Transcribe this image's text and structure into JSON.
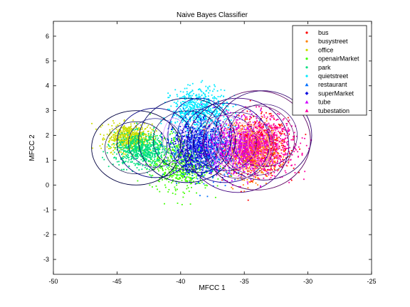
{
  "chart_data": {
    "type": "scatter",
    "title": "Naive Bayes Classifier",
    "xlabel": "MFCC 1",
    "ylabel": "MFCC 2",
    "xlim": [
      -50,
      -25
    ],
    "ylim": [
      -3.6,
      6.6
    ],
    "x_ticks": [
      -50,
      -45,
      -40,
      -35,
      -30,
      -25
    ],
    "y_ticks": [
      -3,
      -2,
      -1,
      0,
      1,
      2,
      3,
      4,
      5,
      6
    ],
    "grid": false,
    "legend_position": "top-right",
    "series": [
      {
        "name": "bus",
        "color": "#ff0000",
        "marker": "dot",
        "cluster": {
          "center": [
            -34.0,
            1.6
          ],
          "spread": [
            2.2,
            1.0
          ]
        }
      },
      {
        "name": "busystreet",
        "color": "#ff8000",
        "marker": "dot",
        "cluster": {
          "center": [
            -34.5,
            1.3
          ],
          "spread": [
            2.0,
            0.9
          ]
        }
      },
      {
        "name": "office",
        "color": "#ccdd00",
        "marker": "dot",
        "cluster": {
          "center": [
            -44.0,
            1.9
          ],
          "spread": [
            1.6,
            0.5
          ]
        }
      },
      {
        "name": "openairMarket",
        "color": "#40ff00",
        "marker": "dot",
        "cluster": {
          "center": [
            -40.0,
            0.9
          ],
          "spread": [
            2.2,
            1.0
          ]
        }
      },
      {
        "name": "park",
        "color": "#00e080",
        "marker": "dot",
        "cluster": {
          "center": [
            -43.0,
            1.4
          ],
          "spread": [
            2.0,
            0.6
          ]
        }
      },
      {
        "name": "quietstreet",
        "color": "#00e8ff",
        "marker": "dot",
        "cluster": {
          "center": [
            -38.5,
            3.0
          ],
          "spread": [
            2.0,
            0.8
          ]
        }
      },
      {
        "name": "restaurant",
        "color": "#0070ff",
        "marker": "triangle",
        "cluster": {
          "center": [
            -38.0,
            1.4
          ],
          "spread": [
            2.6,
            1.0
          ]
        }
      },
      {
        "name": "superMarket",
        "color": "#1010e0",
        "marker": "diamond",
        "cluster": {
          "center": [
            -38.5,
            1.5
          ],
          "spread": [
            1.8,
            0.9
          ]
        }
      },
      {
        "name": "tube",
        "color": "#d000ff",
        "marker": "triangle",
        "cluster": {
          "center": [
            -35.5,
            1.5
          ],
          "spread": [
            2.2,
            1.0
          ]
        }
      },
      {
        "name": "tubestation",
        "color": "#ff00a0",
        "marker": "triangle",
        "cluster": {
          "center": [
            -33.5,
            1.6
          ],
          "spread": [
            2.5,
            1.1
          ]
        }
      }
    ],
    "ellipses": [
      {
        "center": [
          -43.5,
          1.5
        ],
        "r": [
          3.5,
          1.5
        ],
        "color": "#000040"
      },
      {
        "center": [
          -42.0,
          1.7
        ],
        "r": [
          3.0,
          1.4
        ],
        "color": "#000080"
      },
      {
        "center": [
          -39.5,
          1.8
        ],
        "r": [
          3.8,
          1.7
        ],
        "color": "#000066"
      },
      {
        "center": [
          -38.5,
          2.0
        ],
        "r": [
          2.5,
          1.5
        ],
        "color": "#0000aa"
      },
      {
        "center": [
          -36.5,
          1.7
        ],
        "r": [
          3.5,
          1.6
        ],
        "color": "#2000a0"
      },
      {
        "center": [
          -35.5,
          1.6
        ],
        "r": [
          4.0,
          1.9
        ],
        "color": "#400080"
      },
      {
        "center": [
          -34.0,
          1.8
        ],
        "r": [
          4.2,
          2.0
        ],
        "color": "#5a0060"
      },
      {
        "center": [
          -33.5,
          2.0
        ],
        "r": [
          3.8,
          1.8
        ],
        "color": "#300070"
      },
      {
        "center": [
          -35.0,
          1.4
        ],
        "r": [
          2.0,
          1.1
        ],
        "color": "#ffb0c0"
      },
      {
        "center": [
          -34.5,
          1.5
        ],
        "r": [
          1.5,
          0.9
        ],
        "color": "#ffd080"
      },
      {
        "center": [
          -33.5,
          1.7
        ],
        "r": [
          1.2,
          0.8
        ],
        "color": "#ff90d0"
      },
      {
        "center": [
          -36.5,
          1.8
        ],
        "r": [
          1.4,
          1.0
        ],
        "color": "#ffa0e0"
      },
      {
        "center": [
          -40.5,
          1.8
        ],
        "r": [
          0.9,
          0.9
        ],
        "color": "#e0a0ff"
      },
      {
        "center": [
          -38.0,
          1.6
        ],
        "r": [
          1.1,
          1.0
        ],
        "color": "#a0a0ff"
      }
    ]
  }
}
